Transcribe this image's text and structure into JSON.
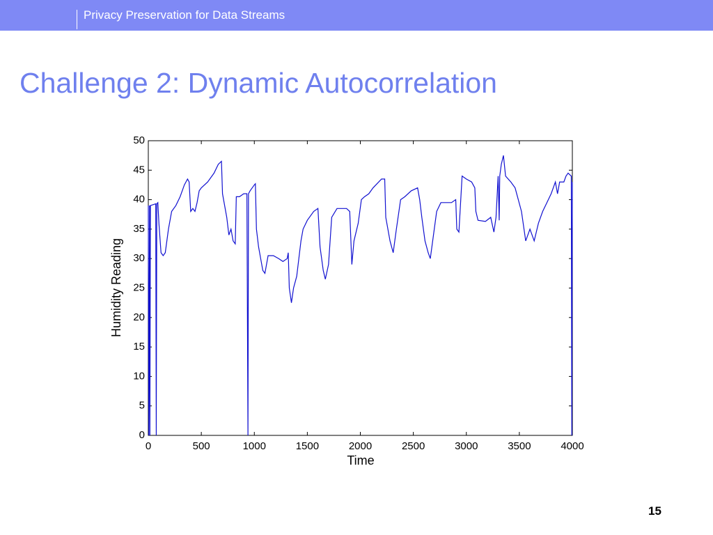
{
  "header": {
    "title": "Privacy Preservation for Data Streams"
  },
  "title": "Challenge 2: Dynamic Autocorrelation",
  "page_number": "15",
  "chart_data": {
    "type": "line",
    "xlabel": "Time",
    "ylabel": "Humidity Reading",
    "xlim": [
      0,
      4000
    ],
    "xticks": [
      0,
      500,
      1000,
      1500,
      2000,
      2500,
      3000,
      3500,
      4000
    ],
    "ylim": [
      0,
      50
    ],
    "yticks": [
      0,
      5,
      10,
      15,
      20,
      25,
      30,
      35,
      40,
      45,
      50
    ],
    "x": [
      0,
      5,
      12,
      15,
      20,
      70,
      75,
      80,
      90,
      100,
      120,
      140,
      160,
      190,
      220,
      260,
      300,
      340,
      370,
      385,
      400,
      420,
      440,
      460,
      480,
      500,
      560,
      620,
      660,
      690,
      700,
      740,
      760,
      780,
      800,
      820,
      830,
      860,
      900,
      930,
      940,
      945,
      960,
      1000,
      1010,
      1020,
      1040,
      1060,
      1080,
      1100,
      1130,
      1180,
      1230,
      1270,
      1310,
      1320,
      1330,
      1350,
      1370,
      1400,
      1420,
      1440,
      1460,
      1500,
      1560,
      1600,
      1620,
      1650,
      1670,
      1700,
      1730,
      1780,
      1800,
      1870,
      1900,
      1920,
      1940,
      1980,
      2010,
      2040,
      2080,
      2120,
      2200,
      2230,
      2240,
      2280,
      2310,
      2340,
      2380,
      2420,
      2480,
      2540,
      2560,
      2580,
      2610,
      2640,
      2660,
      2690,
      2720,
      2760,
      2860,
      2900,
      2910,
      2930,
      2960,
      3000,
      3050,
      3080,
      3090,
      3110,
      3180,
      3230,
      3260,
      3280,
      3300,
      3310,
      3315,
      3330,
      3350,
      3370,
      3420,
      3460,
      3520,
      3560,
      3600,
      3640,
      3680,
      3720,
      3760,
      3800,
      3840,
      3860,
      3880,
      3920,
      3940,
      3960,
      3990,
      3995,
      4000
    ],
    "series": [
      {
        "name": "Humidity Reading",
        "color": "#1010d0",
        "values": [
          39,
          0,
          39,
          0,
          39,
          39.3,
          0,
          39.3,
          39.5,
          36,
          31,
          30.5,
          31,
          35,
          38,
          39,
          40.5,
          42.5,
          43.5,
          43,
          38,
          38.5,
          38,
          39.5,
          41.5,
          42,
          43,
          44.5,
          46,
          46.5,
          41,
          37,
          34,
          35,
          33,
          32.5,
          40.5,
          40.5,
          41,
          41,
          0,
          41,
          41.5,
          42.5,
          42.7,
          35,
          32,
          30,
          28,
          27.5,
          30.5,
          30.5,
          30,
          29.5,
          30,
          31,
          25,
          22.5,
          25,
          27,
          30,
          33,
          35,
          36.5,
          38,
          38.5,
          32,
          28,
          26.5,
          29,
          37,
          38.5,
          38.5,
          38.5,
          38,
          29,
          33,
          36,
          40,
          40.5,
          41,
          42,
          43.5,
          43.5,
          37,
          33,
          31,
          35,
          40,
          40.5,
          41.5,
          42,
          40,
          37,
          33,
          31,
          30,
          34,
          38,
          39.5,
          39.5,
          40,
          35,
          34.5,
          44,
          43.5,
          43,
          42,
          38,
          36.5,
          36.3,
          37,
          34.5,
          37,
          44,
          36.5,
          44,
          46,
          47.5,
          44,
          43,
          42,
          38,
          33,
          35,
          33,
          36,
          38,
          39.5,
          41,
          43,
          41,
          43,
          43,
          44,
          44.5,
          44,
          0,
          43
        ]
      }
    ]
  }
}
